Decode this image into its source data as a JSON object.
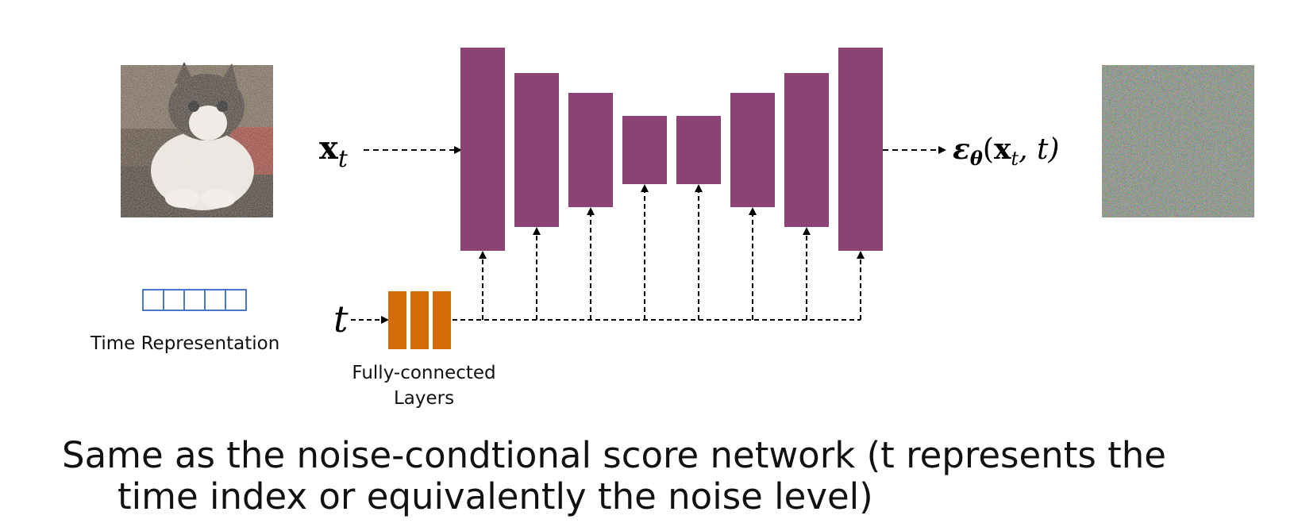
{
  "diagram": {
    "input_label_symbol": "x",
    "input_label_sub": "t",
    "output_label_symbol": "ε",
    "output_label_theta": "θ",
    "output_label_args_open": "(",
    "output_label_x": "x",
    "output_label_x_sub": "t",
    "output_label_args_rest": ", t)",
    "time_input_label": "t",
    "time_representation_label": "Time Representation",
    "fc_label_line1": "Fully-connected",
    "fc_label_line2": "Layers",
    "unet_block_color": "#8a4374",
    "fc_block_color": "#d36c05",
    "time_rep_color": "#4a78c8"
  },
  "caption": {
    "line1": "Same as the noise-condtional score network (t represents the",
    "line2": "time index or equivalently the noise level)"
  }
}
